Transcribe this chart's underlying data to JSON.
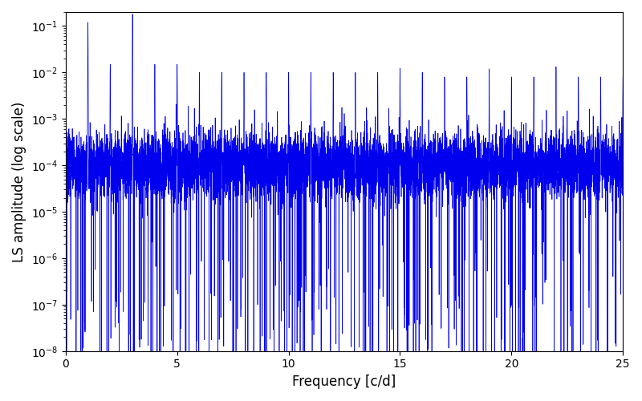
{
  "xlabel": "Frequency [c/d]",
  "ylabel": "LS amplitude (log scale)",
  "line_color": "#0000EE",
  "line_width": 0.5,
  "xlim": [
    0,
    25
  ],
  "ylim": [
    1e-08,
    0.2
  ],
  "freq_min": 0.0,
  "freq_max": 25.0,
  "n_points": 8000,
  "seed": 7,
  "figsize": [
    8.0,
    5.0
  ],
  "dpi": 100,
  "yticks": [
    1e-08,
    1e-07,
    1e-06,
    1e-05,
    0.0001,
    0.001,
    0.01,
    0.1
  ]
}
